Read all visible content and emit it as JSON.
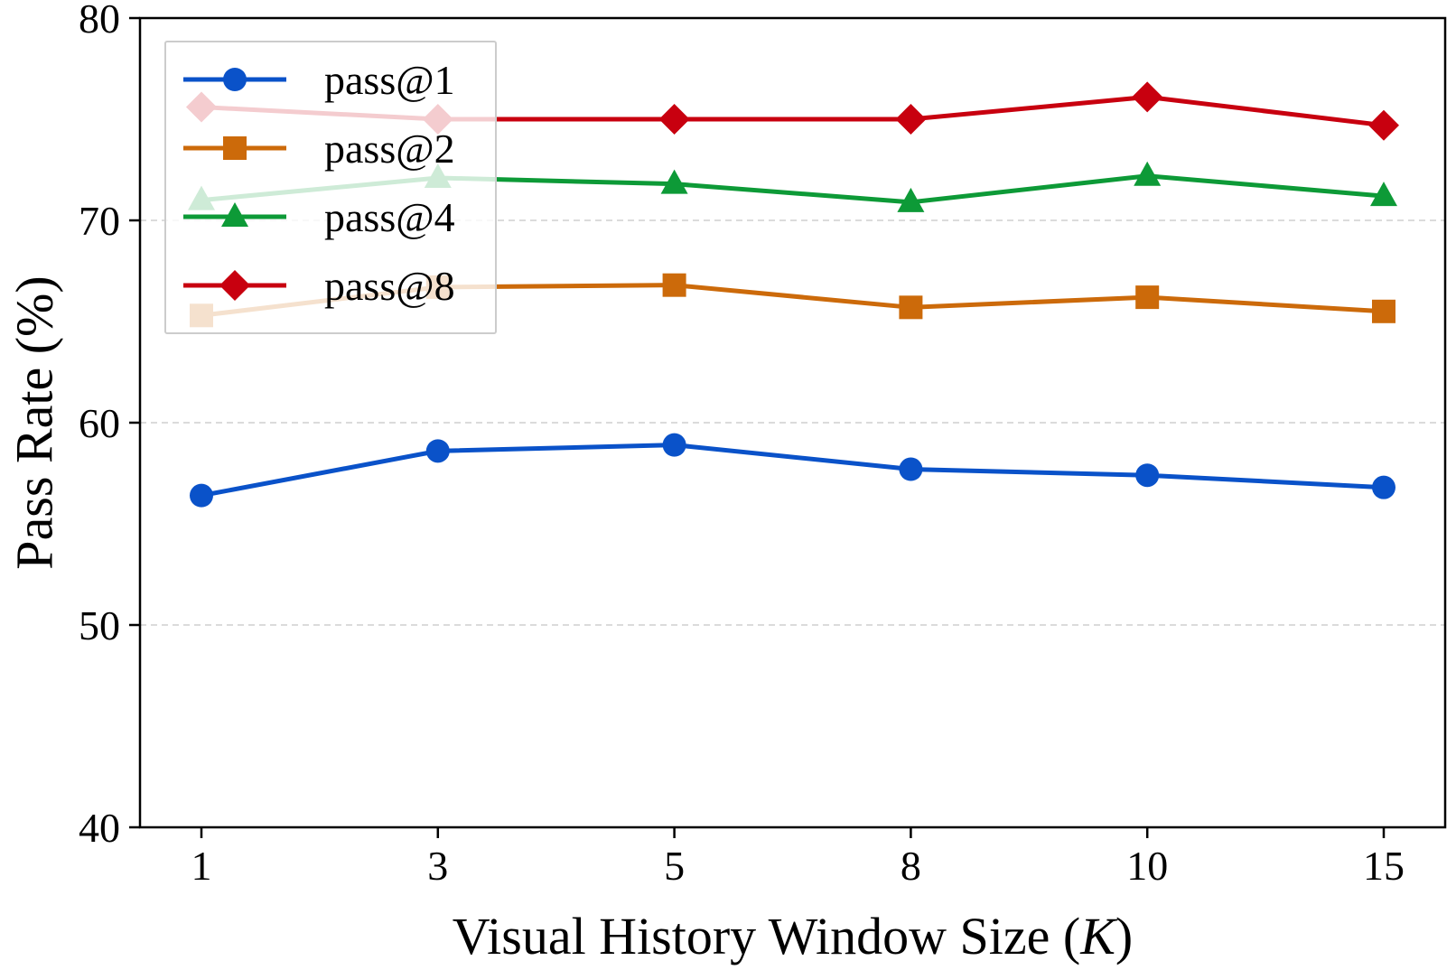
{
  "chart_data": {
    "type": "line",
    "xlabel_prefix": "Visual History Window Size (",
    "xlabel_var": "K",
    "xlabel_suffix": ")",
    "ylabel": "Pass Rate (%)",
    "categories": [
      "1",
      "3",
      "5",
      "8",
      "10",
      "15"
    ],
    "ylim": [
      40,
      80
    ],
    "yticks": [
      "40",
      "50",
      "60",
      "70",
      "80"
    ],
    "grid": "horizontal dashed",
    "legend_position": "upper-left",
    "series": [
      {
        "name": "pass@1",
        "color": "#0a52c9",
        "marker": "circle",
        "values": [
          56.4,
          58.6,
          58.9,
          57.7,
          57.4,
          56.8
        ]
      },
      {
        "name": "pass@2",
        "color": "#cc6a0a",
        "marker": "square",
        "values": [
          65.3,
          66.7,
          66.8,
          65.7,
          66.2,
          65.5
        ]
      },
      {
        "name": "pass@4",
        "color": "#0d9a37",
        "marker": "triangle",
        "values": [
          71.0,
          72.1,
          71.8,
          70.9,
          72.2,
          71.2
        ]
      },
      {
        "name": "pass@8",
        "color": "#c8000f",
        "marker": "diamond",
        "values": [
          75.6,
          75.0,
          75.0,
          75.0,
          76.1,
          74.7
        ]
      }
    ]
  }
}
